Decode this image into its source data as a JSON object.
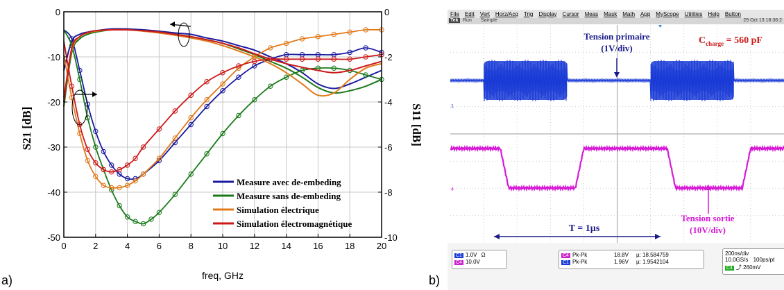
{
  "panel_a_label": "a)",
  "panel_b_label": "b)",
  "chart_data": [
    {
      "type": "line",
      "xlabel": "freq, GHz",
      "ylabel": "S21 [dB]",
      "ylabel_right": "S11 [dB]",
      "xlim": [
        0,
        20
      ],
      "ylim": [
        -50,
        0
      ],
      "ylim_right": [
        -10,
        0
      ],
      "x_ticks": [
        "0",
        "2",
        "4",
        "6",
        "8",
        "10",
        "12",
        "14",
        "16",
        "18",
        "20"
      ],
      "y_ticks": [
        "0",
        "-10",
        "-20",
        "-30",
        "-40",
        "-50"
      ],
      "y_ticks_right": [
        "0",
        "-2",
        "-4",
        "-6",
        "-8",
        "-10"
      ],
      "grid": true,
      "legend_position": "bottom-right",
      "series": [
        {
          "name": "Measure avec de-embeding",
          "color": "#1a1aa0",
          "s21": [
            [
              0,
              -13
            ],
            [
              0.5,
              -6.5
            ],
            [
              1,
              -5
            ],
            [
              1.5,
              -4.5
            ],
            [
              2,
              -4.2
            ],
            [
              3,
              -3.8
            ],
            [
              4,
              -3.8
            ],
            [
              5,
              -4
            ],
            [
              6,
              -4.3
            ],
            [
              7,
              -4.7
            ],
            [
              8,
              -5
            ],
            [
              9,
              -5.8
            ],
            [
              10,
              -6.5
            ],
            [
              11,
              -7.5
            ],
            [
              12,
              -8.5
            ],
            [
              13,
              -10
            ],
            [
              14,
              -11.5
            ],
            [
              15,
              -13.5
            ],
            [
              16,
              -16
            ],
            [
              17,
              -17
            ],
            [
              18,
              -16
            ],
            [
              19,
              -14.5
            ],
            [
              20,
              -13
            ]
          ],
          "s11": [
            [
              0,
              -0.8
            ],
            [
              0.5,
              -1.2
            ],
            [
              1,
              -2.6
            ],
            [
              1.5,
              -4.1
            ],
            [
              2,
              -5.3
            ],
            [
              2.5,
              -6.2
            ],
            [
              3,
              -6.8
            ],
            [
              3.5,
              -7.2
            ],
            [
              4,
              -7.4
            ],
            [
              4.5,
              -7.4
            ],
            [
              5,
              -7.2
            ],
            [
              6,
              -6.6
            ],
            [
              7,
              -5.8
            ],
            [
              8,
              -5
            ],
            [
              9,
              -4.2
            ],
            [
              10,
              -3.5
            ],
            [
              11,
              -2.9
            ],
            [
              12,
              -2.4
            ],
            [
              13,
              -2.1
            ],
            [
              14,
              -1.9
            ],
            [
              15,
              -1.9
            ],
            [
              16,
              -1.9
            ],
            [
              17,
              -1.9
            ],
            [
              18,
              -1.8
            ],
            [
              19,
              -1.6
            ],
            [
              20,
              -1.8
            ]
          ]
        },
        {
          "name": "Measure sans de-embeding",
          "color": "#1a7a1a",
          "s21": [
            [
              0,
              -21
            ],
            [
              0.5,
              -9
            ],
            [
              1,
              -6
            ],
            [
              1.5,
              -5
            ],
            [
              2,
              -4.5
            ],
            [
              3,
              -4
            ],
            [
              4,
              -4
            ],
            [
              5,
              -4.2
            ],
            [
              6,
              -4.5
            ],
            [
              7,
              -5
            ],
            [
              8,
              -5.5
            ],
            [
              9,
              -6.2
            ],
            [
              10,
              -7
            ],
            [
              11,
              -8.2
            ],
            [
              12,
              -9.5
            ],
            [
              13,
              -11
            ],
            [
              14,
              -12.5
            ],
            [
              15,
              -14.5
            ],
            [
              16,
              -16.8
            ],
            [
              17,
              -18
            ],
            [
              18,
              -17.5
            ],
            [
              19,
              -16.5
            ],
            [
              20,
              -15
            ]
          ],
          "s11": [
            [
              0,
              -0.8
            ],
            [
              0.5,
              -1.5
            ],
            [
              1,
              -3
            ],
            [
              1.5,
              -4.7
            ],
            [
              2,
              -6
            ],
            [
              2.5,
              -7
            ],
            [
              3,
              -7.9
            ],
            [
              3.5,
              -8.6
            ],
            [
              4,
              -9.1
            ],
            [
              4.5,
              -9.3
            ],
            [
              5,
              -9.4
            ],
            [
              5.5,
              -9.2
            ],
            [
              6,
              -8.9
            ],
            [
              7,
              -8.1
            ],
            [
              8,
              -7.2
            ],
            [
              9,
              -6.3
            ],
            [
              10,
              -5.4
            ],
            [
              11,
              -4.6
            ],
            [
              12,
              -3.9
            ],
            [
              13,
              -3.3
            ],
            [
              14,
              -2.9
            ],
            [
              15,
              -2.6
            ],
            [
              16,
              -2.5
            ],
            [
              17,
              -2.5
            ],
            [
              18,
              -2.6
            ],
            [
              19,
              -2.8
            ],
            [
              20,
              -3
            ]
          ]
        },
        {
          "name": "Simulation électrique",
          "color": "#e07a1a",
          "s21": [
            [
              0,
              -19
            ],
            [
              0.5,
              -8.5
            ],
            [
              1,
              -5.5
            ],
            [
              1.5,
              -4.7
            ],
            [
              2,
              -4.3
            ],
            [
              3,
              -4
            ],
            [
              4,
              -4
            ],
            [
              5,
              -4.3
            ],
            [
              6,
              -4.7
            ],
            [
              7,
              -5.2
            ],
            [
              8,
              -5.8
            ],
            [
              9,
              -6.5
            ],
            [
              10,
              -7.5
            ],
            [
              11,
              -8.7
            ],
            [
              12,
              -10
            ],
            [
              13,
              -11.5
            ],
            [
              14,
              -13.5
            ],
            [
              15,
              -16
            ],
            [
              16,
              -18.5
            ],
            [
              17,
              -18
            ],
            [
              18,
              -15
            ],
            [
              19,
              -12.5
            ],
            [
              20,
              -11.5
            ]
          ],
          "s11": [
            [
              0,
              -1.9
            ],
            [
              0.5,
              -3.8
            ],
            [
              1,
              -5.4
            ],
            [
              1.5,
              -6.6
            ],
            [
              2,
              -7.3
            ],
            [
              2.5,
              -7.7
            ],
            [
              3,
              -7.8
            ],
            [
              3.5,
              -7.8
            ],
            [
              4,
              -7.7
            ],
            [
              4.5,
              -7.5
            ],
            [
              5,
              -7.2
            ],
            [
              6,
              -6.5
            ],
            [
              7,
              -5.6
            ],
            [
              8,
              -4.7
            ],
            [
              9,
              -3.9
            ],
            [
              10,
              -3.2
            ],
            [
              11,
              -2.5
            ],
            [
              12,
              -2
            ],
            [
              13,
              -1.6
            ],
            [
              14,
              -1.4
            ],
            [
              15,
              -1.2
            ],
            [
              16,
              -1.1
            ],
            [
              17,
              -1.0
            ],
            [
              18,
              -0.9
            ],
            [
              19,
              -0.8
            ],
            [
              20,
              -0.8
            ]
          ]
        },
        {
          "name": "Simulation électromagnétique",
          "color": "#cc1a1a",
          "s21": [
            [
              0,
              -20
            ],
            [
              0.5,
              -8
            ],
            [
              1,
              -5.5
            ],
            [
              1.5,
              -4.6
            ],
            [
              2,
              -4.2
            ],
            [
              3,
              -4
            ],
            [
              4,
              -4
            ],
            [
              5,
              -4.2
            ],
            [
              6,
              -4.5
            ],
            [
              7,
              -5
            ],
            [
              8,
              -5.5
            ],
            [
              9,
              -6.2
            ],
            [
              10,
              -7
            ],
            [
              11,
              -8
            ],
            [
              12,
              -9.3
            ],
            [
              13,
              -10.5
            ],
            [
              14,
              -11.5
            ],
            [
              15,
              -12.3
            ],
            [
              16,
              -13
            ],
            [
              17,
              -13.5
            ],
            [
              18,
              -13
            ],
            [
              19,
              -12
            ],
            [
              20,
              -11
            ]
          ],
          "s11": [
            [
              0,
              -1.3
            ],
            [
              0.5,
              -3.3
            ],
            [
              1,
              -5
            ],
            [
              1.5,
              -6.1
            ],
            [
              2,
              -6.7
            ],
            [
              2.5,
              -7
            ],
            [
              3,
              -7.1
            ],
            [
              3.5,
              -7
            ],
            [
              4,
              -6.8
            ],
            [
              4.5,
              -6.5
            ],
            [
              5,
              -6
            ],
            [
              6,
              -5.2
            ],
            [
              7,
              -4.4
            ],
            [
              8,
              -3.7
            ],
            [
              9,
              -3.1
            ],
            [
              10,
              -2.7
            ],
            [
              11,
              -2.4
            ],
            [
              12,
              -2.2
            ],
            [
              13,
              -2.1
            ],
            [
              14,
              -2.1
            ],
            [
              15,
              -2.1
            ],
            [
              16,
              -2.1
            ],
            [
              17,
              -2.1
            ],
            [
              18,
              -2.1
            ],
            [
              19,
              -2
            ],
            [
              20,
              -1.9
            ]
          ]
        }
      ]
    },
    {
      "type": "line",
      "waveforms": [
        {
          "name": "Tension primaire",
          "channel": "C1",
          "color": "#1a3bd6",
          "bursts_us": [
            [
              0.2,
              0.7
            ],
            [
              1.2,
              1.7
            ]
          ]
        },
        {
          "name": "Tension sortie",
          "channel": "C4",
          "color": "#d61ad6",
          "low_intervals_us": [
            [
              0.3,
              0.75
            ],
            [
              1.3,
              1.75
            ]
          ]
        }
      ]
    }
  ],
  "scope": {
    "menu": [
      "File",
      "Edit",
      "Vert",
      "Horz/Acq",
      "Trig",
      "Display",
      "Cursor",
      "Meas",
      "Mask",
      "Math",
      "App",
      "MyScope",
      "Utilities",
      "Help",
      "Button"
    ],
    "status_tek": "Tek",
    "status_run": "Run",
    "status_sample": "Sample",
    "status_date": "29 Oct 13 18:36:2",
    "annotations": {
      "tension_primaire": "Tension primaire",
      "primaire_scale": "(1V/div)",
      "charge_prefix": "C",
      "charge_sub": "charge",
      "charge_value": " = 560 pF",
      "tension_sortie": "Tension sortie",
      "sortie_scale": "(10V/div)",
      "period": "T = 1µs"
    },
    "channels": {
      "c1_chip": "C1",
      "c1_scale": "1.0V",
      "c1_imp": "Ω",
      "c4_chip": "C4",
      "c4_scale": "10.0V"
    },
    "measurements": {
      "row1_chip": "C4",
      "row1_name": "Pk-Pk",
      "row1_value": "18.8V",
      "row1_mean": "µ: 18.584759",
      "row2_chip": "C1",
      "row2_name": "Pk-Pk",
      "row2_value": "1.96V",
      "row2_mean": "µ: 1.9542104"
    },
    "timebase": {
      "time_div": "200ns/div",
      "rate": "10.0GS/s",
      "resolution": "100ps/pt",
      "trig_chip": "C4",
      "trig_level": "⤴ 260mV"
    },
    "marker_c1": "1",
    "marker_c4": "4"
  },
  "colors": {
    "grid": "#c8c8c8",
    "scope_c1": "#1a3bd6",
    "scope_c4": "#d61ad6",
    "annot_blue": "#1a1a8a",
    "annot_red": "#cc1a1a",
    "annot_magenta": "#d61ad6"
  }
}
